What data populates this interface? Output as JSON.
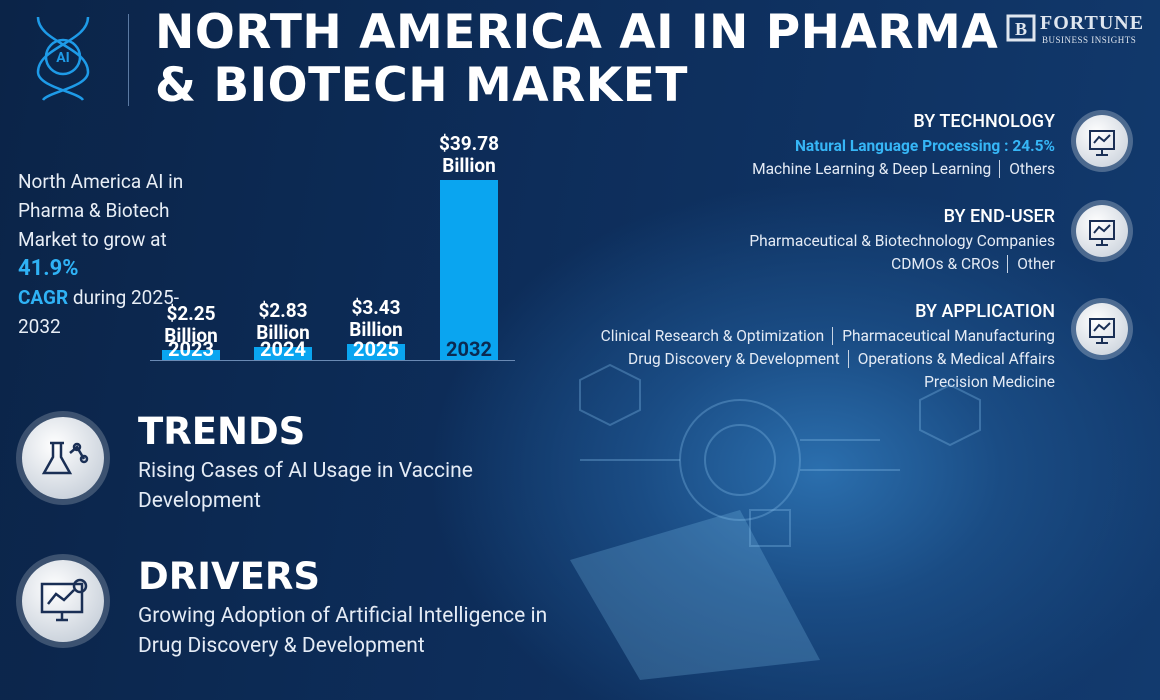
{
  "header": {
    "title_line1": "NORTH AMERICA AI IN PHARMA",
    "title_line2": "& BIOTECH MARKET",
    "logo_name": "FORTUNE",
    "logo_sub": "BUSINESS INSIGHTS"
  },
  "intro": {
    "text": "North America AI in Pharma & Biotech Market to grow at",
    "cagr": "41.9%",
    "cagr_label": "CAGR",
    "period": "during 2025-2032"
  },
  "chart_data": {
    "type": "bar",
    "categories": [
      "2023",
      "2024",
      "2025",
      "2032"
    ],
    "values": [
      2.25,
      2.83,
      3.43,
      39.78
    ],
    "value_labels": [
      "$2.25 Billion",
      "$2.83 Billion",
      "$3.43 Billion",
      "$39.78 Billion"
    ],
    "color": "#0aa5f0"
  },
  "segments": [
    {
      "title": "BY TECHNOLOGY",
      "highlight": "Natural Language Processing : 24.5%",
      "rows": [
        [
          "Machine Learning & Deep Learning",
          "Others"
        ]
      ]
    },
    {
      "title": "BY END-USER",
      "rows": [
        [
          "Pharmaceutical & Biotechnology Companies"
        ],
        [
          "CDMOs & CROs",
          "Other"
        ]
      ]
    },
    {
      "title": "BY APPLICATION",
      "rows": [
        [
          "Clinical Research & Optimization",
          "Pharmaceutical Manufacturing"
        ],
        [
          "Drug Discovery & Development",
          "Operations & Medical Affairs"
        ],
        [
          "Precision Medicine"
        ]
      ]
    }
  ],
  "trends": {
    "title": "TRENDS",
    "text": "Rising Cases of AI Usage in Vaccine Development"
  },
  "drivers": {
    "title": "DRIVERS",
    "text": "Growing Adoption of Artificial Intelligence in Drug Discovery & Development"
  }
}
